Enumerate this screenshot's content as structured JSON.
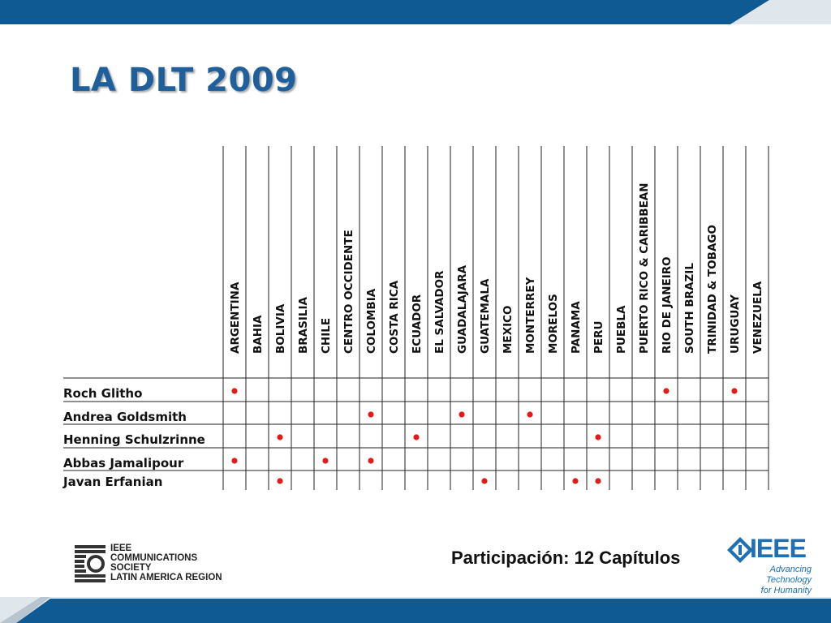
{
  "colors": {
    "brand_blue": "#1e5f9c",
    "bar_blue": "#0f5a93",
    "dot_red": "#e01b1b",
    "ieee_blue": "#1e6fb3"
  },
  "slide": {
    "title": "LA DLT 2009",
    "participation": "Participación: 12 Capítulos"
  },
  "table": {
    "columns": [
      "ARGENTINA",
      "BAHIA",
      "BOLIVIA",
      "BRASILIA",
      "CHILE",
      "CENTRO OCCIDENTE",
      "COLOMBIA",
      "COSTA RICA",
      "ECUADOR",
      "EL SALVADOR",
      "GUADALAJARA",
      "GUATEMALA",
      "MEXICO",
      "MONTERREY",
      "MORELOS",
      "PANAMA",
      "PERU",
      "PUEBLA",
      "PUERTO RICO & CARIBBEAN",
      "RIO DE JANEIRO",
      "SOUTH BRAZIL",
      "TRINIDAD & TOBAGO",
      "URUGUAY",
      "VENEZUELA"
    ],
    "rows": [
      {
        "name": "Roch Glitho",
        "marks": [
          "ARGENTINA",
          "RIO DE JANEIRO",
          "URUGUAY"
        ]
      },
      {
        "name": "Andrea Goldsmith",
        "marks": [
          "COLOMBIA",
          "GUADALAJARA",
          "MONTERREY"
        ]
      },
      {
        "name": "Henning Schulzrinne",
        "marks": [
          "BOLIVIA",
          "ECUADOR",
          "PERU"
        ]
      },
      {
        "name": "Abbas Jamalipour",
        "marks": [
          "ARGENTINA",
          "CHILE",
          "COLOMBIA"
        ]
      },
      {
        "name": "Javan Erfanian",
        "marks": [
          "BOLIVIA",
          "GUATEMALA",
          "PANAMA",
          "PERU"
        ]
      }
    ]
  },
  "comsoc_logo": {
    "lines": [
      "IEEE",
      "COMMUNICATIONS",
      "SOCIETY",
      "LATIN AMERICA REGION"
    ],
    "icon": "comsoc-c-logo-icon"
  },
  "ieee_logo": {
    "wordmark": "IEEE",
    "tagline_1": "Advancing Technology",
    "tagline_2": "for Humanity",
    "icon": "ieee-diamond-icon"
  }
}
